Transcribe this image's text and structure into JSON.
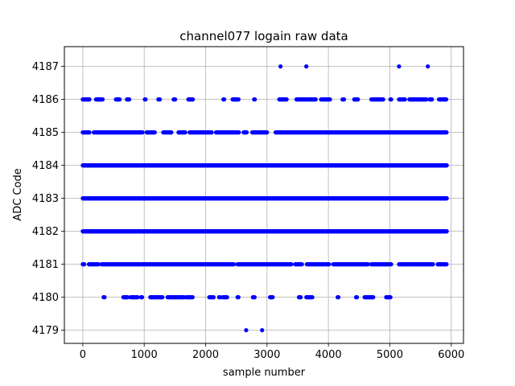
{
  "chart_data": {
    "type": "scatter",
    "title": "channel077 logain raw data",
    "xlabel": "sample number",
    "ylabel": "ADC Code",
    "xlim": [
      -300,
      6200
    ],
    "ylim": [
      4178.6,
      4187.6
    ],
    "xticks": [
      0,
      1000,
      2000,
      3000,
      4000,
      5000,
      6000
    ],
    "yticks": [
      4179,
      4180,
      4181,
      4182,
      4183,
      4184,
      4185,
      4186,
      4187
    ],
    "grid": true,
    "marker_color": "#0000ff",
    "series": [
      {
        "name": "",
        "points": [
          {
            "x": 3220,
            "y": 4187
          },
          {
            "x": 3640,
            "y": 4187
          },
          {
            "x": 5150,
            "y": 4187
          },
          {
            "x": 5620,
            "y": 4187
          },
          {
            "x": 2660,
            "y": 4179
          },
          {
            "x": 2920,
            "y": 4179
          }
        ],
        "bands": [
          {
            "y": 4186,
            "segments": [
              [
                0,
                110
              ],
              [
                215,
                330
              ],
              [
                540,
                610
              ],
              [
                720,
                760
              ],
              [
                1010,
                1030
              ],
              [
                1230,
                1260
              ],
              [
                1480,
                1510
              ],
              [
                1720,
                1800
              ],
              [
                2290,
                2310
              ],
              [
                2440,
                2540
              ],
              [
                2790,
                2810
              ],
              [
                3200,
                3320
              ],
              [
                3480,
                3800
              ],
              [
                3880,
                4030
              ],
              [
                4230,
                4260
              ],
              [
                4420,
                4480
              ],
              [
                4700,
                4900
              ],
              [
                5010,
                5030
              ],
              [
                5150,
                5250
              ],
              [
                5320,
                5600
              ],
              [
                5650,
                5690
              ],
              [
                5800,
                5930
              ]
            ],
            "step": 12
          },
          {
            "y": 4185,
            "segments": [
              [
                0,
                110
              ],
              [
                180,
                980
              ],
              [
                1040,
                1180
              ],
              [
                1310,
                1450
              ],
              [
                1560,
                1670
              ],
              [
                1740,
                2100
              ],
              [
                2170,
                2550
              ],
              [
                2620,
                2670
              ],
              [
                2760,
                3000
              ],
              [
                3140,
                5930
              ]
            ],
            "step": 12
          },
          {
            "y": 4184,
            "segments": [
              [
                0,
                5930
              ]
            ],
            "step": 6
          },
          {
            "y": 4183,
            "segments": [
              [
                0,
                5930
              ]
            ],
            "step": 6
          },
          {
            "y": 4182,
            "segments": [
              [
                0,
                5930
              ]
            ],
            "step": 6
          },
          {
            "y": 4181,
            "segments": [
              [
                0,
                30
              ],
              [
                100,
                260
              ],
              [
                310,
                2460
              ],
              [
                2520,
                3400
              ],
              [
                3460,
                3570
              ],
              [
                3650,
                4020
              ],
              [
                4080,
                4650
              ],
              [
                4700,
                4990
              ],
              [
                5010,
                5030
              ],
              [
                5150,
                5710
              ],
              [
                5780,
                5930
              ]
            ],
            "step": 12
          },
          {
            "y": 4180,
            "segments": [
              [
                340,
                360
              ],
              [
                660,
                740
              ],
              [
                780,
                900
              ],
              [
                950,
                970
              ],
              [
                1100,
                1300
              ],
              [
                1380,
                1450
              ],
              [
                1470,
                1660
              ],
              [
                1690,
                1790
              ],
              [
                2060,
                2130
              ],
              [
                2220,
                2240
              ],
              [
                2280,
                2360
              ],
              [
                2520,
                2540
              ],
              [
                2770,
                2800
              ],
              [
                3050,
                3100
              ],
              [
                3520,
                3560
              ],
              [
                3640,
                3740
              ],
              [
                4150,
                4170
              ],
              [
                4450,
                4470
              ],
              [
                4590,
                4740
              ],
              [
                4940,
                5020
              ]
            ],
            "step": 14
          }
        ]
      }
    ]
  }
}
